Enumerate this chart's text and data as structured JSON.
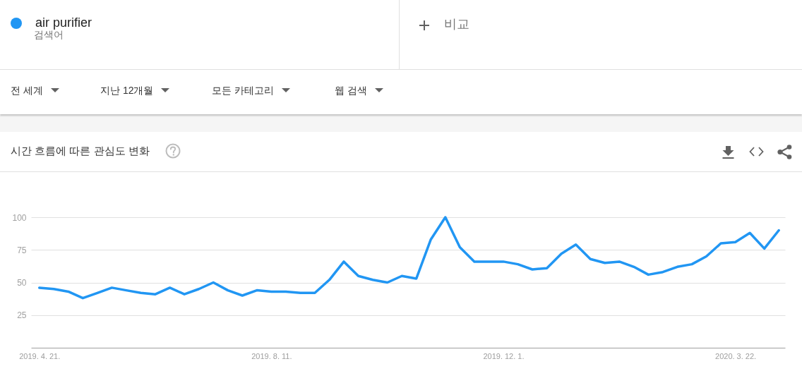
{
  "chart_data": {
    "type": "line",
    "title": "시간 흐름에 따른 관심도 변화",
    "x": [
      "2019-04-21",
      "2019-04-28",
      "2019-05-05",
      "2019-05-12",
      "2019-05-19",
      "2019-05-26",
      "2019-06-02",
      "2019-06-09",
      "2019-06-16",
      "2019-06-23",
      "2019-06-30",
      "2019-07-07",
      "2019-07-14",
      "2019-07-21",
      "2019-07-28",
      "2019-08-04",
      "2019-08-11",
      "2019-08-18",
      "2019-08-25",
      "2019-09-01",
      "2019-09-08",
      "2019-09-15",
      "2019-09-22",
      "2019-09-29",
      "2019-10-06",
      "2019-10-13",
      "2019-10-20",
      "2019-10-27",
      "2019-11-03",
      "2019-11-10",
      "2019-11-17",
      "2019-11-24",
      "2019-12-01",
      "2019-12-08",
      "2019-12-15",
      "2019-12-22",
      "2019-12-29",
      "2020-01-05",
      "2020-01-12",
      "2020-01-19",
      "2020-01-26",
      "2020-02-02",
      "2020-02-09",
      "2020-02-16",
      "2020-02-23",
      "2020-03-01",
      "2020-03-08",
      "2020-03-15",
      "2020-03-22",
      "2020-03-29",
      "2020-04-05",
      "2020-04-12"
    ],
    "series": [
      {
        "name": "air purifier",
        "color": "#2196f3",
        "values": [
          46,
          45,
          43,
          38,
          42,
          46,
          44,
          42,
          41,
          46,
          41,
          45,
          50,
          44,
          40,
          44,
          43,
          43,
          42,
          42,
          52,
          66,
          55,
          52,
          50,
          55,
          53,
          83,
          100,
          77,
          66,
          66,
          66,
          64,
          60,
          61,
          72,
          79,
          68,
          65,
          66,
          62,
          56,
          58,
          62,
          64,
          70,
          80,
          81,
          88,
          76,
          90
        ]
      }
    ],
    "xlim": [
      "2019-04-17",
      "2020-04-15"
    ],
    "xticks": [
      {
        "value": "2019-04-21",
        "label": "2019. 4. 21."
      },
      {
        "value": "2019-08-11",
        "label": "2019. 8. 11."
      },
      {
        "value": "2019-12-01",
        "label": "2019. 12. 1."
      },
      {
        "value": "2020-03-22",
        "label": "2020. 3. 22."
      }
    ],
    "ylim": [
      0,
      100
    ],
    "yticks": [
      25,
      50,
      75,
      100
    ],
    "grid": "y",
    "legend": "top left",
    "line_style": "solid",
    "annotations": [
      "검색어",
      "비교",
      "전 세계",
      "지난 12개월",
      "모든 카테고리",
      "웹 검색"
    ]
  }
}
